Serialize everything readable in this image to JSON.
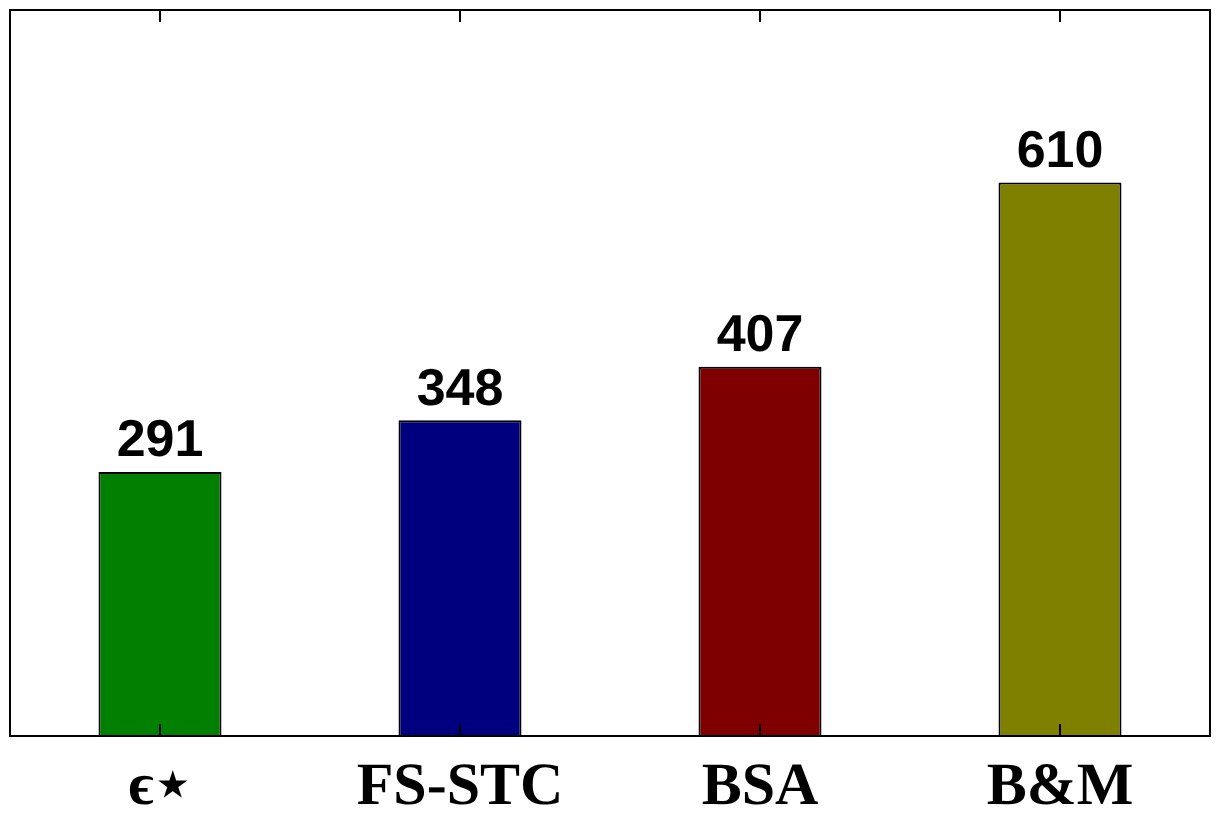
{
  "chart_data": {
    "type": "bar",
    "categories": [
      "ϵ⋆",
      "FS-STC",
      "BSA",
      "B&M"
    ],
    "values": [
      291,
      348,
      407,
      610
    ],
    "colors": [
      "#007f00",
      "#00007f",
      "#7f0000",
      "#7f7f00"
    ],
    "ylim": [
      0,
      800
    ],
    "tick_labels": "x",
    "data_labels": true,
    "grid": false,
    "legend": false
  }
}
